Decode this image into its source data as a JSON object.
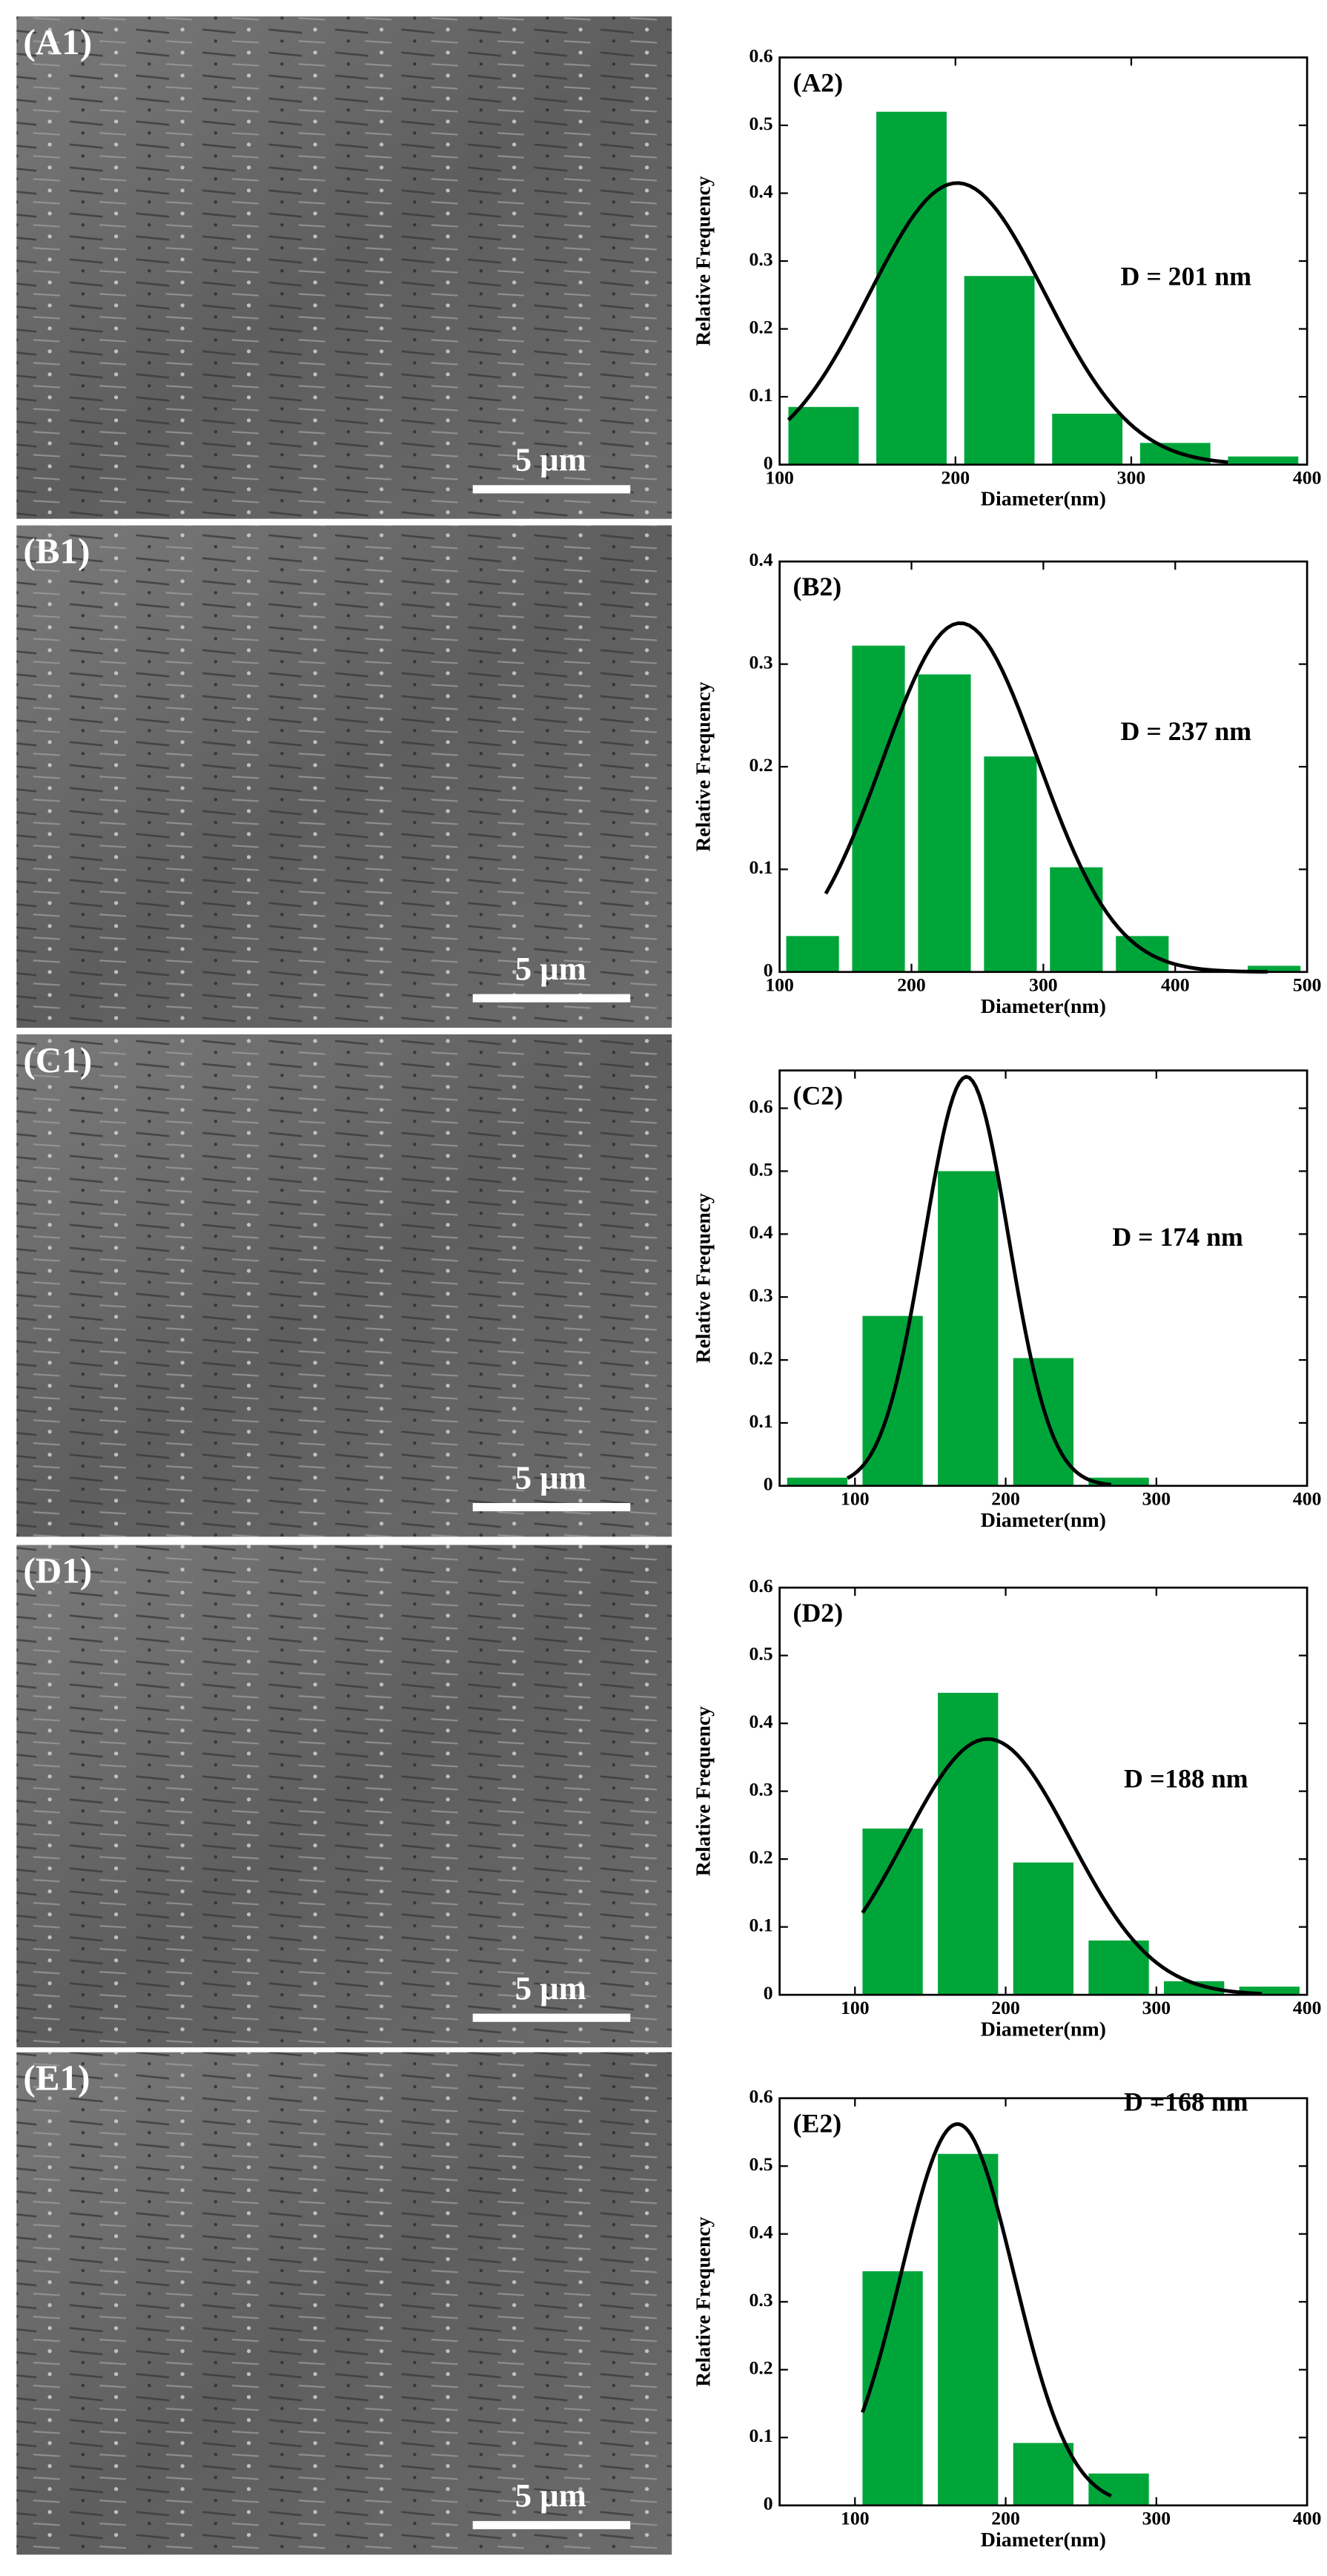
{
  "images": [
    {
      "label": "(A1)",
      "scale_bar": "5 μm"
    },
    {
      "label": "(B1)",
      "scale_bar": "5 μm"
    },
    {
      "label": "(C1)",
      "scale_bar": "5 μm"
    },
    {
      "label": "(D1)",
      "scale_bar": "5 μm"
    },
    {
      "label": "(E1)",
      "scale_bar": "5 μm"
    }
  ],
  "chart_data": [
    {
      "type": "histogram",
      "label": "(A2)",
      "annotation": "D = 201 nm",
      "xlabel": "Diameter(nm)",
      "ylabel": "Relative Frequency",
      "color": "#00a53a",
      "bins": [
        100,
        150,
        200,
        250,
        300,
        350,
        400
      ],
      "values": [
        0.085,
        0.52,
        0.278,
        0.075,
        0.032,
        0.012
      ],
      "fit": {
        "peak": 0.415,
        "mean": 201,
        "sigma": 50,
        "range": [
          105,
          355
        ]
      },
      "xlim": [
        100,
        400
      ],
      "xticks": [
        100,
        200,
        300,
        400
      ],
      "ylim": [
        0,
        0.6
      ],
      "yticks": [
        0.0,
        0.1,
        0.2,
        0.3,
        0.4,
        0.5,
        0.6
      ]
    },
    {
      "type": "histogram",
      "label": "(B2)",
      "annotation": "D = 237 nm",
      "xlabel": "Diameter(nm)",
      "ylabel": "Relative Frequency",
      "color": "#00a53a",
      "bins": [
        100,
        150,
        200,
        250,
        300,
        350,
        400,
        450,
        500
      ],
      "values": [
        0.035,
        0.318,
        0.29,
        0.21,
        0.102,
        0.035,
        0,
        0.006
      ],
      "fit": {
        "peak": 0.34,
        "mean": 237,
        "sigma": 59,
        "range": [
          135,
          470
        ]
      },
      "xlim": [
        100,
        500
      ],
      "xticks": [
        100,
        200,
        300,
        400,
        500
      ],
      "ylim": [
        0,
        0.4
      ],
      "yticks": [
        0.0,
        0.1,
        0.2,
        0.3,
        0.4
      ]
    },
    {
      "type": "histogram",
      "label": "(C2)",
      "annotation": "D = 174 nm",
      "xlabel": "Diameter(nm)",
      "ylabel": "Relative Frequency",
      "color": "#00a53a",
      "bins": [
        50,
        100,
        150,
        200,
        250,
        300
      ],
      "values": [
        0.013,
        0.27,
        0.5,
        0.203,
        0.013
      ],
      "fit": {
        "peak": 0.65,
        "mean": 174,
        "sigma": 28,
        "range": [
          95,
          270
        ]
      },
      "xlim": [
        50,
        400
      ],
      "xticks": [
        100,
        200,
        300,
        400
      ],
      "ylim": [
        0,
        0.66
      ],
      "yticks": [
        0.0,
        0.1,
        0.2,
        0.3,
        0.4,
        0.5,
        0.6
      ]
    },
    {
      "type": "histogram",
      "label": "(D2)",
      "annotation": "D =188 nm",
      "xlabel": "Diameter(nm)",
      "ylabel": "Relative Frequency",
      "color": "#00a53a",
      "bins": [
        100,
        150,
        200,
        250,
        300,
        350,
        400
      ],
      "values": [
        0.245,
        0.445,
        0.195,
        0.08,
        0.02,
        0.012
      ],
      "fit": {
        "peak": 0.377,
        "mean": 188,
        "sigma": 55,
        "range": [
          105,
          370
        ]
      },
      "xlim": [
        50,
        400
      ],
      "xticks": [
        100,
        200,
        300,
        400
      ],
      "ylim": [
        0,
        0.6
      ],
      "yticks": [
        0.0,
        0.1,
        0.2,
        0.3,
        0.4,
        0.5,
        0.6
      ]
    },
    {
      "type": "histogram",
      "label": "(E2)",
      "annotation": "D =168 nm",
      "xlabel": "Diameter(nm)",
      "ylabel": "Relative Frequency",
      "color": "#00a53a",
      "bins": [
        100,
        150,
        200,
        250,
        300
      ],
      "values": [
        0.345,
        0.518,
        0.092,
        0.047
      ],
      "fit": {
        "peak": 0.562,
        "mean": 168,
        "sigma": 37.5,
        "range": [
          105,
          270
        ]
      },
      "xlim": [
        50,
        400
      ],
      "xticks": [
        100,
        200,
        300,
        400
      ],
      "ylim": [
        0,
        0.6
      ],
      "yticks": [
        0.0,
        0.1,
        0.2,
        0.3,
        0.4,
        0.5,
        0.6
      ]
    }
  ]
}
